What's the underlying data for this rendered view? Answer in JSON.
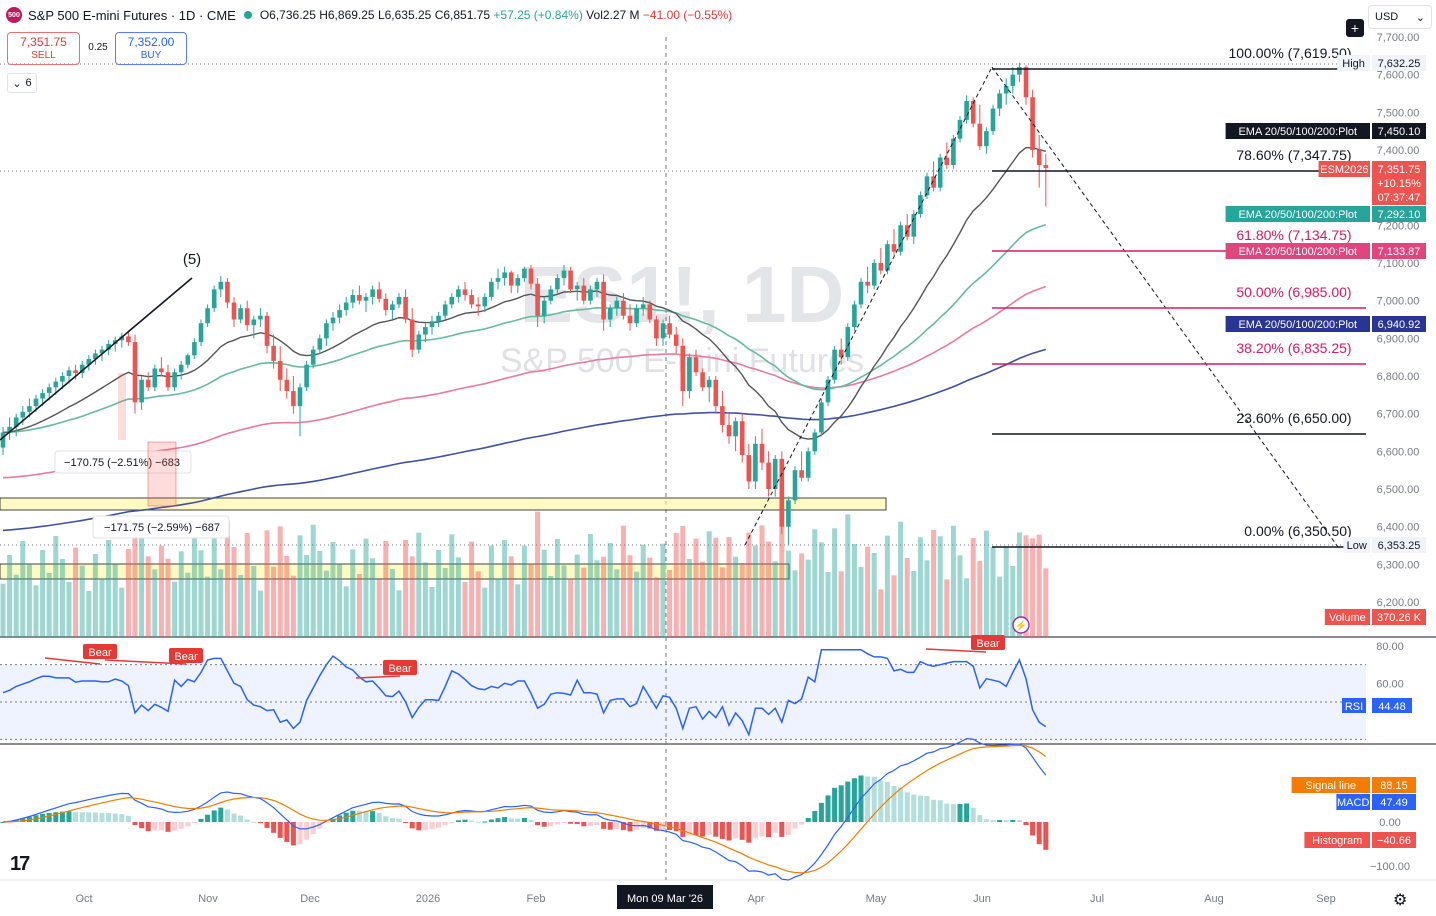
{
  "header": {
    "badge": "500",
    "title": "S&P 500 E-mini Futures · 1D · CME",
    "open": "O6,736.25",
    "high": "H6,869.25",
    "low": "L6,635.25",
    "close": "C6,851.75",
    "change": "+57.25 (+0.84%)",
    "vol_label": "Vol",
    "vol_value": "2.27 M",
    "vol_change": "−41.00 (−0.55%)"
  },
  "trade": {
    "sell_price": "7,351.75",
    "sell_label": "SELL",
    "spread": "0.25",
    "buy_price": "7,352.00",
    "buy_label": "BUY"
  },
  "intervals_label": "6",
  "currency": "USD",
  "watermark": {
    "symbol": "ES1!, 1D",
    "name": "S&P 500 E-mini Futures"
  },
  "colors": {
    "up": "#26a69a",
    "down": "#ef5350",
    "ema20": "#555555",
    "ema50": "#66bb9f",
    "ema100": "#e97b9b",
    "ema200": "#3f51a5",
    "rsi": "#2962ff",
    "macd": "#2962ff",
    "signal": "#f57c00"
  },
  "chart_data": [
    {
      "type": "candlestick",
      "title": "ES1!, 1D",
      "ylim": [
        6150,
        7720
      ],
      "y_ticks": [
        "7,700.00",
        "7,600.00",
        "7,500.00",
        "7,400.00",
        "7,300.00",
        "7,200.00",
        "7,100.00",
        "7,000.00",
        "6,900.00",
        "6,800.00",
        "6,700.00",
        "6,600.00",
        "6,500.00",
        "6,400.00",
        "6,300.00",
        "6,200.00"
      ],
      "x_ticks": [
        "Oct",
        "Nov",
        "Dec",
        "2026",
        "Feb",
        "Apr",
        "May",
        "Jun",
        "Jul",
        "Aug",
        "Sep"
      ],
      "crosshair_date": "Mon 09 Mar '26",
      "ohlc_approx": [
        [
          6610,
          6665,
          6590,
          6650
        ],
        [
          6650,
          6690,
          6630,
          6665
        ],
        [
          6665,
          6700,
          6640,
          6690
        ],
        [
          6690,
          6720,
          6670,
          6705
        ],
        [
          6705,
          6740,
          6690,
          6720
        ],
        [
          6720,
          6750,
          6705,
          6740
        ],
        [
          6740,
          6765,
          6720,
          6755
        ],
        [
          6755,
          6780,
          6735,
          6770
        ],
        [
          6770,
          6795,
          6750,
          6785
        ],
        [
          6785,
          6810,
          6765,
          6800
        ],
        [
          6800,
          6825,
          6780,
          6815
        ],
        [
          6815,
          6830,
          6790,
          6808
        ],
        [
          6808,
          6840,
          6795,
          6830
        ],
        [
          6830,
          6855,
          6815,
          6845
        ],
        [
          6845,
          6870,
          6830,
          6860
        ],
        [
          6860,
          6880,
          6840,
          6870
        ],
        [
          6870,
          6895,
          6855,
          6885
        ],
        [
          6885,
          6905,
          6865,
          6895
        ],
        [
          6895,
          6915,
          6875,
          6905
        ],
        [
          6905,
          6920,
          6880,
          6890
        ],
        [
          6890,
          6910,
          6700,
          6730
        ],
        [
          6730,
          6800,
          6710,
          6790
        ],
        [
          6790,
          6810,
          6760,
          6770
        ],
        [
          6770,
          6830,
          6760,
          6820
        ],
        [
          6820,
          6850,
          6800,
          6810
        ],
        [
          6810,
          6830,
          6760,
          6770
        ],
        [
          6770,
          6820,
          6760,
          6810
        ],
        [
          6810,
          6840,
          6790,
          6830
        ],
        [
          6830,
          6860,
          6820,
          6855
        ],
        [
          6855,
          6900,
          6845,
          6890
        ],
        [
          6890,
          6950,
          6880,
          6940
        ],
        [
          6940,
          6990,
          6930,
          6980
        ],
        [
          6980,
          7040,
          6970,
          7030
        ],
        [
          7030,
          7065,
          7010,
          7050
        ],
        [
          7050,
          7060,
          6980,
          6995
        ],
        [
          6995,
          7010,
          6930,
          6950
        ],
        [
          6950,
          6990,
          6940,
          6980
        ],
        [
          6980,
          7000,
          6920,
          6935
        ],
        [
          6935,
          6960,
          6900,
          6950
        ],
        [
          6950,
          6980,
          6930,
          6960
        ],
        [
          6960,
          6970,
          6860,
          6880
        ],
        [
          6880,
          6910,
          6820,
          6840
        ],
        [
          6840,
          6880,
          6760,
          6790
        ],
        [
          6790,
          6820,
          6740,
          6760
        ],
        [
          6760,
          6800,
          6700,
          6720
        ],
        [
          6720,
          6780,
          6640,
          6770
        ],
        [
          6770,
          6840,
          6760,
          6830
        ],
        [
          6830,
          6880,
          6820,
          6870
        ],
        [
          6870,
          6910,
          6860,
          6900
        ],
        [
          6900,
          6950,
          6880,
          6940
        ],
        [
          6940,
          6970,
          6920,
          6955
        ],
        [
          6955,
          6990,
          6940,
          6975
        ],
        [
          6975,
          7010,
          6960,
          6995
        ],
        [
          6995,
          7030,
          6980,
          7015
        ],
        [
          7015,
          7040,
          6990,
          7000
        ],
        [
          7000,
          7020,
          6970,
          7010
        ],
        [
          7010,
          7040,
          6990,
          7030
        ],
        [
          7030,
          7050,
          6995,
          7005
        ],
        [
          7005,
          7020,
          6960,
          6975
        ],
        [
          6975,
          7000,
          6950,
          6990
        ],
        [
          6990,
          7020,
          6980,
          7010
        ],
        [
          7010,
          7030,
          6940,
          6950
        ],
        [
          6950,
          6980,
          6850,
          6870
        ],
        [
          6870,
          6920,
          6860,
          6910
        ],
        [
          6910,
          6940,
          6890,
          6930
        ],
        [
          6930,
          6960,
          6910,
          6945
        ],
        [
          6945,
          6970,
          6930,
          6960
        ],
        [
          6960,
          7000,
          6950,
          6990
        ],
        [
          6990,
          7020,
          6980,
          7010
        ],
        [
          7010,
          7040,
          6995,
          7030
        ],
        [
          7030,
          7050,
          7000,
          7015
        ],
        [
          7015,
          7030,
          6980,
          6990
        ],
        [
          6990,
          7010,
          6960,
          6985
        ],
        [
          6985,
          7020,
          6970,
          7010
        ],
        [
          7010,
          7060,
          7000,
          7050
        ],
        [
          7050,
          7085,
          7030,
          7060
        ],
        [
          7060,
          7090,
          7040,
          7075
        ],
        [
          7075,
          7080,
          7020,
          7040
        ],
        [
          7040,
          7070,
          7020,
          7060
        ],
        [
          7060,
          7090,
          7050,
          7085
        ],
        [
          7085,
          7095,
          7030,
          7045
        ],
        [
          7045,
          7060,
          6930,
          6960
        ],
        [
          6960,
          7010,
          6940,
          7000
        ],
        [
          7000,
          7040,
          6990,
          7030
        ],
        [
          7030,
          7070,
          7020,
          7060
        ],
        [
          7060,
          7095,
          7040,
          7080
        ],
        [
          7080,
          7090,
          7020,
          7030
        ],
        [
          7030,
          7050,
          7000,
          7040
        ],
        [
          7040,
          7060,
          6990,
          7000
        ],
        [
          7000,
          7040,
          6990,
          7030
        ],
        [
          7030,
          7060,
          7010,
          7050
        ],
        [
          7050,
          7070,
          6920,
          6950
        ],
        [
          6950,
          6990,
          6930,
          6980
        ],
        [
          6980,
          7010,
          6960,
          7000
        ],
        [
          7000,
          7020,
          6950,
          6960
        ],
        [
          6960,
          6990,
          6920,
          6940
        ],
        [
          6940,
          6990,
          6930,
          6980
        ],
        [
          6980,
          7010,
          6960,
          6990
        ],
        [
          6990,
          7000,
          6940,
          6950
        ],
        [
          6950,
          6960,
          6880,
          6900
        ],
        [
          6900,
          6950,
          6880,
          6940
        ],
        [
          6940,
          6960,
          6900,
          6910
        ],
        [
          6910,
          6930,
          6860,
          6880
        ],
        [
          6880,
          6900,
          6720,
          6760
        ],
        [
          6760,
          6860,
          6740,
          6850
        ],
        [
          6850,
          6870,
          6800,
          6810
        ],
        [
          6810,
          6820,
          6760,
          6770
        ],
        [
          6770,
          6800,
          6730,
          6790
        ],
        [
          6790,
          6800,
          6700,
          6720
        ],
        [
          6720,
          6760,
          6650,
          6670
        ],
        [
          6670,
          6700,
          6620,
          6640
        ],
        [
          6640,
          6690,
          6600,
          6680
        ],
        [
          6680,
          6700,
          6570,
          6590
        ],
        [
          6590,
          6620,
          6500,
          6520
        ],
        [
          6520,
          6640,
          6500,
          6620
        ],
        [
          6620,
          6660,
          6550,
          6570
        ],
        [
          6570,
          6600,
          6480,
          6500
        ],
        [
          6500,
          6590,
          6480,
          6580
        ],
        [
          6580,
          6600,
          6380,
          6400
        ],
        [
          6400,
          6480,
          6350,
          6470
        ],
        [
          6470,
          6560,
          6460,
          6550
        ],
        [
          6550,
          6600,
          6520,
          6530
        ],
        [
          6530,
          6610,
          6520,
          6600
        ],
        [
          6600,
          6660,
          6590,
          6650
        ],
        [
          6650,
          6740,
          6640,
          6730
        ],
        [
          6730,
          6800,
          6720,
          6790
        ],
        [
          6790,
          6880,
          6780,
          6870
        ],
        [
          6870,
          6900,
          6830,
          6850
        ],
        [
          6850,
          6940,
          6840,
          6930
        ],
        [
          6930,
          7000,
          6920,
          6990
        ],
        [
          6990,
          7060,
          6980,
          7050
        ],
        [
          7050,
          7090,
          7020,
          7040
        ],
        [
          7040,
          7110,
          7030,
          7100
        ],
        [
          7100,
          7140,
          7070,
          7080
        ],
        [
          7080,
          7160,
          7070,
          7150
        ],
        [
          7150,
          7190,
          7120,
          7130
        ],
        [
          7130,
          7210,
          7120,
          7200
        ],
        [
          7200,
          7230,
          7160,
          7170
        ],
        [
          7170,
          7240,
          7150,
          7230
        ],
        [
          7230,
          7290,
          7220,
          7280
        ],
        [
          7280,
          7340,
          7270,
          7330
        ],
        [
          7330,
          7370,
          7290,
          7300
        ],
        [
          7300,
          7390,
          7290,
          7380
        ],
        [
          7380,
          7420,
          7350,
          7360
        ],
        [
          7360,
          7440,
          7350,
          7430
        ],
        [
          7430,
          7490,
          7420,
          7480
        ],
        [
          7480,
          7545,
          7470,
          7530
        ],
        [
          7530,
          7540,
          7460,
          7470
        ],
        [
          7470,
          7520,
          7400,
          7410
        ],
        [
          7410,
          7460,
          7390,
          7450
        ],
        [
          7450,
          7520,
          7440,
          7510
        ],
        [
          7510,
          7560,
          7490,
          7550
        ],
        [
          7550,
          7590,
          7520,
          7570
        ],
        [
          7570,
          7620,
          7550,
          7600
        ],
        [
          7600,
          7632,
          7580,
          7620
        ],
        [
          7620,
          7625,
          7520,
          7540
        ],
        [
          7540,
          7560,
          7380,
          7400
        ],
        [
          7400,
          7440,
          7300,
          7360
        ],
        [
          7360,
          7390,
          7250,
          7352
        ]
      ],
      "emas": [
        "EMA 20/50/100/200:Plot"
      ],
      "price_labels": {
        "high": {
          "label": "High",
          "value": "7,632.25"
        },
        "ema20": {
          "label": "EMA 20/50/100/200:Plot",
          "value": "7,450.10"
        },
        "last": {
          "label": "ESM2026",
          "value": "7,351.75",
          "pct": "+10.15%",
          "countdown": "07:37:47"
        },
        "ema50": {
          "label": "EMA 20/50/100/200:Plot",
          "value": "7,292.10"
        },
        "ema100": {
          "label": "EMA 20/50/100/200:Plot",
          "value": "7,133.87"
        },
        "ema200": {
          "label": "EMA 20/50/100/200:Plot",
          "value": "6,940.92"
        },
        "low": {
          "label": "Low",
          "value": "6,353.25"
        },
        "volume": {
          "label": "Volume",
          "value": "370.26 K"
        }
      },
      "fib_levels": [
        {
          "label": "100.00% (7,619.50)",
          "value": 7619.5,
          "color": "#131722"
        },
        {
          "label": "78.60% (7,347.75)",
          "value": 7347.75,
          "color": "#131722"
        },
        {
          "label": "61.80% (7,134.75)",
          "value": 7134.75,
          "color": "#d81b60"
        },
        {
          "label": "50.00% (6,985.00)",
          "value": 6985.0,
          "color": "#d81b60"
        },
        {
          "label": "38.20% (6,835.25)",
          "value": 6835.25,
          "color": "#d81b60"
        },
        {
          "label": "23.60% (6,650.00)",
          "value": 6650.0,
          "color": "#131722"
        },
        {
          "label": "0.00% (6,350.50)",
          "value": 6350.5,
          "color": "#131722"
        }
      ],
      "annotations": {
        "wave_label": "(5)",
        "measure_1": "−170.75 (−2.51%) −683",
        "measure_2": "−171.75 (−2.59%) −687"
      }
    },
    {
      "type": "line",
      "title": "RSI",
      "ylim": [
        30,
        85
      ],
      "y_ticks": [
        "80.00",
        "60.00"
      ],
      "value_label": "44.48",
      "divergence_label": "Bear"
    },
    {
      "type": "bar",
      "title": "MACD",
      "y_ticks": [
        "0.00",
        "−100.00"
      ],
      "signal_label": "Signal line",
      "signal_value": "88.15",
      "macd_label": "MACD",
      "macd_value": "47.49",
      "hist_label": "Histogram",
      "hist_value": "−40.66"
    }
  ]
}
